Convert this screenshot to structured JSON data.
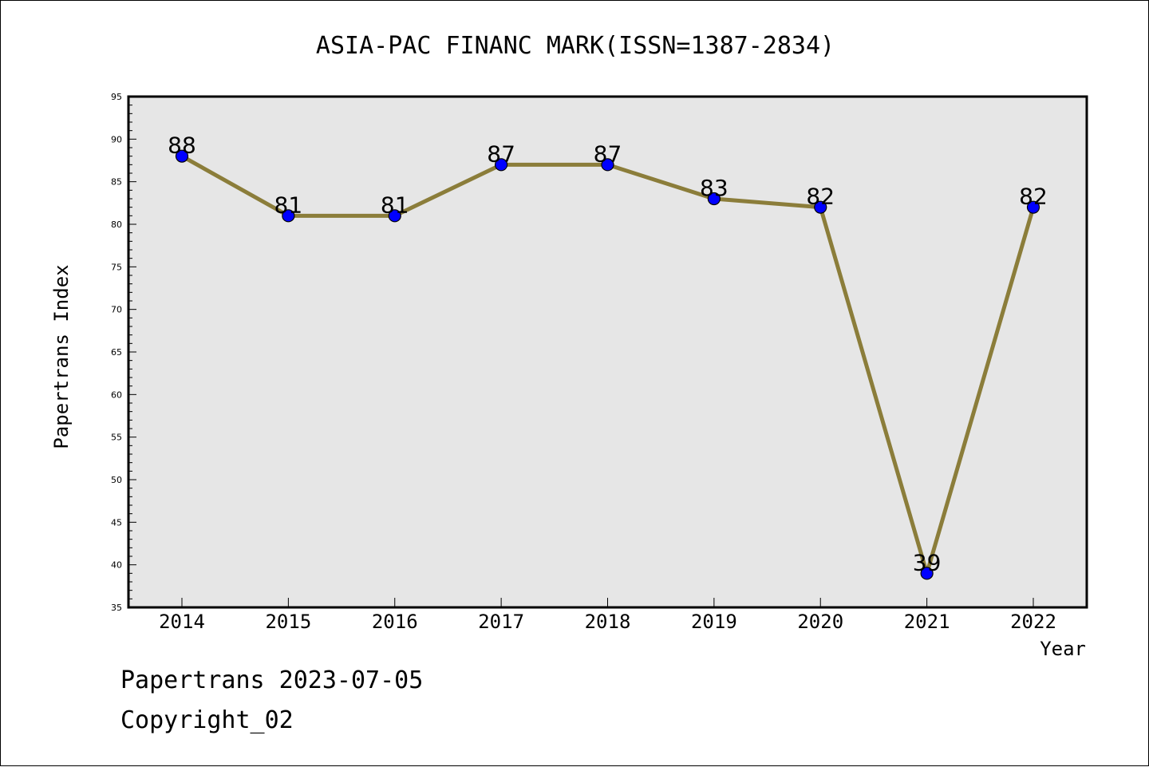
{
  "chart_data": {
    "type": "line",
    "title": "ASIA-PAC FINANC MARK(ISSN=1387-2834)",
    "xlabel": "Year",
    "ylabel": "Papertrans Index",
    "categories": [
      "2014",
      "2015",
      "2016",
      "2017",
      "2018",
      "2019",
      "2020",
      "2021",
      "2022"
    ],
    "values": [
      88,
      81,
      81,
      87,
      87,
      83,
      82,
      39,
      82
    ],
    "ylim": [
      35,
      95
    ],
    "yticks": [
      35,
      40,
      45,
      50,
      55,
      60,
      65,
      70,
      75,
      80,
      85,
      90,
      95
    ],
    "grid": false,
    "legend": "none",
    "colors": {
      "line": "#8B7D3A",
      "marker": "#0000FF",
      "plot_background": "#E6E6E6"
    }
  },
  "footer": {
    "line1": "Papertrans 2023-07-05",
    "line2": "Copyright_02"
  }
}
